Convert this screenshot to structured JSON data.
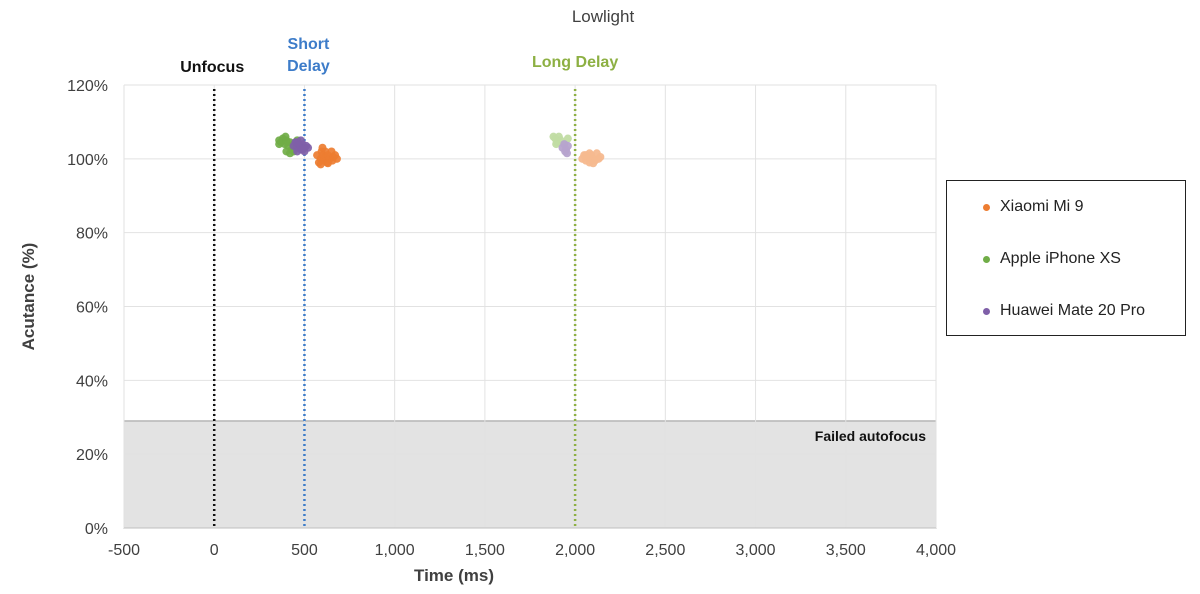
{
  "chart_data": {
    "type": "scatter",
    "title": "Lowlight",
    "xlabel": "Time (ms)",
    "ylabel": "Acutance (%)",
    "xlim": [
      -500,
      4000
    ],
    "ylim": [
      0,
      120
    ],
    "xticks": [
      -500,
      0,
      500,
      1000,
      1500,
      2000,
      2500,
      3000,
      3500,
      4000
    ],
    "xtick_labels": [
      "-500",
      "0",
      "500",
      "1,000",
      "1,500",
      "2,000",
      "2,500",
      "3,000",
      "3,500",
      "4,000"
    ],
    "yticks": [
      0,
      20,
      40,
      60,
      80,
      100,
      120
    ],
    "ytick_labels": [
      "0%",
      "20%",
      "40%",
      "60%",
      "80%",
      "100%",
      "120%"
    ],
    "grid": true,
    "legend_position": "right",
    "failed_region": {
      "label": "Failed autofocus",
      "y_max": 29,
      "color": "#e3e3e3"
    },
    "reference_lines": [
      {
        "label": "Unfocus",
        "x": 0,
        "color": "#111111"
      },
      {
        "label": "Short Delay",
        "x": 500,
        "color": "#3d7cc9"
      },
      {
        "label": "Long Delay",
        "x": 2000,
        "color": "#8db043"
      }
    ],
    "series": [
      {
        "name": "Xiaomi Mi 9",
        "color": "#ed7d31",
        "light_color": "#f6b98f",
        "points_short": [
          [
            570,
            101
          ],
          [
            580,
            99
          ],
          [
            590,
            100
          ],
          [
            595,
            102
          ],
          [
            600,
            101
          ],
          [
            605,
            99.5
          ],
          [
            610,
            100
          ],
          [
            615,
            102
          ],
          [
            620,
            100.5
          ],
          [
            625,
            99
          ],
          [
            630,
            101
          ],
          [
            640,
            100
          ],
          [
            650,
            102
          ],
          [
            655,
            99.5
          ],
          [
            660,
            100.5
          ],
          [
            670,
            101
          ],
          [
            680,
            100
          ],
          [
            600,
            103
          ],
          [
            630,
            98.8
          ],
          [
            590,
            98.5
          ]
        ],
        "points_long": [
          [
            2040,
            100
          ],
          [
            2050,
            101
          ],
          [
            2060,
            99.5
          ],
          [
            2070,
            100.5
          ],
          [
            2080,
            99
          ],
          [
            2090,
            101
          ],
          [
            2100,
            100
          ],
          [
            2110,
            99.5
          ],
          [
            2120,
            101.5
          ],
          [
            2130,
            100
          ],
          [
            2140,
            100.5
          ],
          [
            2080,
            101.5
          ],
          [
            2100,
            98.8
          ],
          [
            2060,
            101
          ]
        ]
      },
      {
        "name": "Apple iPhone XS",
        "color": "#70ad47",
        "light_color": "#c1dca3",
        "points_short": [
          [
            360,
            105
          ],
          [
            370,
            104.5
          ],
          [
            380,
            105.5
          ],
          [
            390,
            104
          ],
          [
            400,
            105
          ],
          [
            410,
            103.5
          ],
          [
            420,
            104.5
          ],
          [
            430,
            102.5
          ],
          [
            440,
            104
          ],
          [
            450,
            103
          ],
          [
            460,
            105
          ],
          [
            470,
            104
          ],
          [
            480,
            103.5
          ],
          [
            400,
            102
          ],
          [
            420,
            101.5
          ],
          [
            360,
            104
          ],
          [
            395,
            106
          ],
          [
            440,
            102
          ]
        ],
        "points_long": [
          [
            1880,
            106
          ],
          [
            1890,
            105.5
          ],
          [
            1900,
            104.5
          ],
          [
            1910,
            106
          ],
          [
            1920,
            105
          ],
          [
            1940,
            104
          ],
          [
            1960,
            105.5
          ],
          [
            1895,
            104
          ]
        ]
      },
      {
        "name": "Huawei Mate 20 Pro",
        "color": "#7f5fa8",
        "light_color": "#b6a3ce",
        "points_short": [
          [
            440,
            103.5
          ],
          [
            450,
            104.5
          ],
          [
            460,
            103
          ],
          [
            470,
            104
          ],
          [
            480,
            102.5
          ],
          [
            490,
            104
          ],
          [
            500,
            103
          ],
          [
            510,
            103.5
          ],
          [
            520,
            103
          ],
          [
            460,
            102
          ],
          [
            480,
            105
          ],
          [
            500,
            102
          ],
          [
            455,
            104.5
          ],
          [
            490,
            102.5
          ]
        ],
        "points_long": [
          [
            1930,
            103
          ],
          [
            1940,
            104
          ],
          [
            1950,
            102.5
          ],
          [
            1960,
            103.5
          ],
          [
            1955,
            101.5
          ],
          [
            1945,
            102
          ]
        ]
      }
    ]
  }
}
